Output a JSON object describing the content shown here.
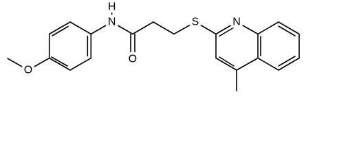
{
  "atom_labels": [
    "O",
    "H",
    "N",
    "O",
    "S",
    "N"
  ]
}
